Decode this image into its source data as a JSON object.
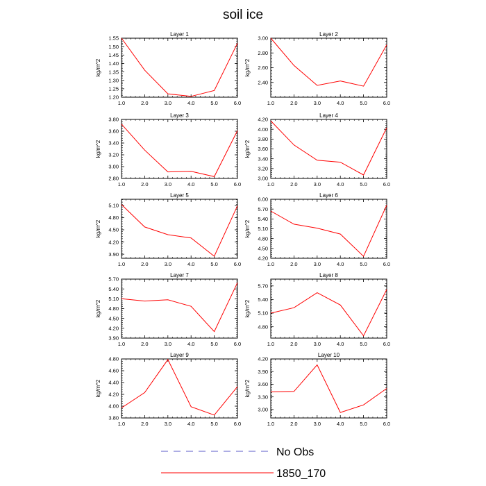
{
  "figure": {
    "title": "soil ice",
    "legend": [
      {
        "label": "No Obs",
        "color": "#5b5bc8",
        "dash": true
      },
      {
        "label": "1850_170",
        "color": "#ff0000",
        "dash": false
      }
    ]
  },
  "chart_data": [
    {
      "type": "line",
      "title": "Layer 1",
      "ylabel": "kg/m^2",
      "x": [
        1,
        2,
        3,
        4,
        5,
        6
      ],
      "xticks": [
        "1.0",
        "2.0",
        "3.0",
        "4.0",
        "5.0",
        "6.0"
      ],
      "xlim": [
        1,
        6
      ],
      "ylim": [
        1.2,
        1.55
      ],
      "yticks": [
        "1.20",
        "1.25",
        "1.30",
        "1.35",
        "1.40",
        "1.45",
        "1.50",
        "1.55"
      ],
      "series": [
        {
          "name": "1850_170",
          "values": [
            1.55,
            1.36,
            1.22,
            1.205,
            1.24,
            1.52
          ]
        }
      ]
    },
    {
      "type": "line",
      "title": "Layer 2",
      "ylabel": "kg/m^2",
      "x": [
        1,
        2,
        3,
        4,
        5,
        6
      ],
      "xticks": [
        "1.0",
        "2.0",
        "3.0",
        "4.0",
        "5.0",
        "6.0"
      ],
      "xlim": [
        1,
        6
      ],
      "ylim": [
        2.2,
        3.0
      ],
      "yticks": [
        "2.40",
        "2.60",
        "2.80",
        "3.00"
      ],
      "series": [
        {
          "name": "1850_170",
          "values": [
            3.0,
            2.63,
            2.36,
            2.42,
            2.35,
            2.91
          ]
        }
      ]
    },
    {
      "type": "line",
      "title": "Layer 3",
      "ylabel": "kg/m^2",
      "x": [
        1,
        2,
        3,
        4,
        5,
        6
      ],
      "xticks": [
        "1.0",
        "2.0",
        "3.0",
        "4.0",
        "5.0",
        "6.0"
      ],
      "xlim": [
        1,
        6
      ],
      "ylim": [
        2.8,
        3.8
      ],
      "yticks": [
        "2.80",
        "3.00",
        "3.20",
        "3.40",
        "3.60",
        "3.80"
      ],
      "series": [
        {
          "name": "1850_170",
          "values": [
            3.72,
            3.28,
            2.91,
            2.92,
            2.83,
            3.61
          ]
        }
      ]
    },
    {
      "type": "line",
      "title": "Layer 4",
      "ylabel": "kg/m^2",
      "x": [
        1,
        2,
        3,
        4,
        5,
        6
      ],
      "xticks": [
        "1.0",
        "2.0",
        "3.0",
        "4.0",
        "5.0",
        "6.0"
      ],
      "xlim": [
        1,
        6
      ],
      "ylim": [
        3.0,
        4.2
      ],
      "yticks": [
        "3.00",
        "3.20",
        "3.40",
        "3.60",
        "3.80",
        "4.00",
        "4.20"
      ],
      "series": [
        {
          "name": "1850_170",
          "values": [
            4.17,
            3.68,
            3.37,
            3.33,
            3.07,
            4.03
          ]
        }
      ]
    },
    {
      "type": "line",
      "title": "Layer 5",
      "ylabel": "kg/m^2",
      "x": [
        1,
        2,
        3,
        4,
        5,
        6
      ],
      "xticks": [
        "1.0",
        "2.0",
        "3.0",
        "4.0",
        "5.0",
        "6.0"
      ],
      "xlim": [
        1,
        6
      ],
      "ylim": [
        3.8,
        5.25
      ],
      "yticks": [
        "3.90",
        "4.20",
        "4.50",
        "4.80",
        "5.10"
      ],
      "series": [
        {
          "name": "1850_170",
          "values": [
            5.12,
            4.57,
            4.38,
            4.3,
            3.85,
            5.09
          ]
        }
      ]
    },
    {
      "type": "line",
      "title": "Layer 6",
      "ylabel": "kg/m^2",
      "x": [
        1,
        2,
        3,
        4,
        5,
        6
      ],
      "xticks": [
        "1.0",
        "2.0",
        "3.0",
        "4.0",
        "5.0",
        "6.0"
      ],
      "xlim": [
        1,
        6
      ],
      "ylim": [
        4.2,
        6.0
      ],
      "yticks": [
        "4.20",
        "4.50",
        "4.80",
        "5.10",
        "5.40",
        "5.70",
        "6.00"
      ],
      "series": [
        {
          "name": "1850_170",
          "values": [
            5.64,
            5.24,
            5.12,
            4.94,
            4.26,
            5.82
          ]
        }
      ]
    },
    {
      "type": "line",
      "title": "Layer 7",
      "ylabel": "kg/m^2",
      "x": [
        1,
        2,
        3,
        4,
        5,
        6
      ],
      "xticks": [
        "1.0",
        "2.0",
        "3.0",
        "4.0",
        "5.0",
        "6.0"
      ],
      "xlim": [
        1,
        6
      ],
      "ylim": [
        3.9,
        5.7
      ],
      "yticks": [
        "3.90",
        "4.20",
        "4.50",
        "4.80",
        "5.10",
        "5.40",
        "5.70"
      ],
      "series": [
        {
          "name": "1850_170",
          "values": [
            5.1,
            5.03,
            5.07,
            4.87,
            4.1,
            5.59
          ]
        }
      ]
    },
    {
      "type": "line",
      "title": "Layer 8",
      "ylabel": "kg/m^2",
      "x": [
        1,
        2,
        3,
        4,
        5,
        6
      ],
      "xticks": [
        "1.0",
        "2.0",
        "3.0",
        "4.0",
        "5.0",
        "6.0"
      ],
      "xlim": [
        1,
        6
      ],
      "ylim": [
        4.55,
        5.85
      ],
      "yticks": [
        "4.80",
        "5.10",
        "5.40",
        "5.70"
      ],
      "series": [
        {
          "name": "1850_170",
          "values": [
            5.1,
            5.22,
            5.55,
            5.28,
            4.6,
            5.62
          ]
        }
      ]
    },
    {
      "type": "line",
      "title": "Layer 9",
      "ylabel": "kg/m^2",
      "x": [
        1,
        2,
        3,
        4,
        5,
        6
      ],
      "xticks": [
        "1.0",
        "2.0",
        "3.0",
        "4.0",
        "5.0",
        "6.0"
      ],
      "xlim": [
        1,
        6
      ],
      "ylim": [
        3.8,
        4.8
      ],
      "yticks": [
        "3.80",
        "4.00",
        "4.20",
        "4.40",
        "4.60",
        "4.80"
      ],
      "series": [
        {
          "name": "1850_170",
          "values": [
            3.97,
            4.23,
            4.79,
            3.99,
            3.85,
            4.33
          ]
        }
      ]
    },
    {
      "type": "line",
      "title": "Layer 10",
      "ylabel": "kg/m^2",
      "x": [
        1,
        2,
        3,
        4,
        5,
        6
      ],
      "xticks": [
        "1.0",
        "2.0",
        "3.0",
        "4.0",
        "5.0",
        "6.0"
      ],
      "xlim": [
        1,
        6
      ],
      "ylim": [
        2.8,
        4.2
      ],
      "yticks": [
        "3.00",
        "3.30",
        "3.60",
        "3.90",
        "4.20"
      ],
      "series": [
        {
          "name": "1850_170",
          "values": [
            3.42,
            3.43,
            4.06,
            2.93,
            3.11,
            3.5
          ]
        }
      ]
    }
  ]
}
